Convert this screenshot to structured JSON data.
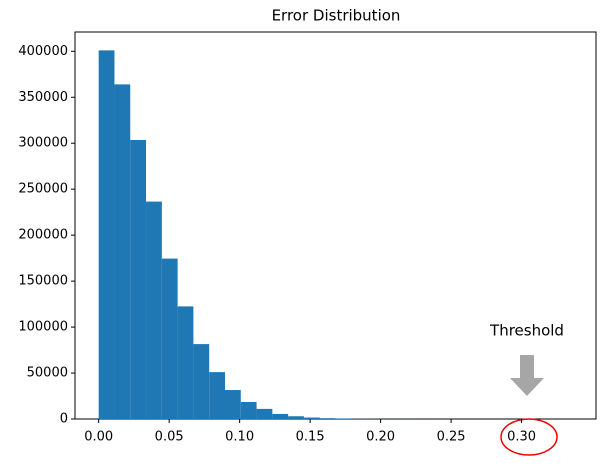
{
  "chart_data": {
    "type": "histogram",
    "title": "Error Distribution",
    "bins": [
      0,
      0.0112,
      0.0224,
      0.0336,
      0.0448,
      0.056,
      0.0672,
      0.0784,
      0.0896,
      0.1008,
      0.112,
      0.1232,
      0.1344,
      0.1456,
      0.1568,
      0.168,
      0.1792,
      0.1904,
      0.2016,
      0.2128,
      0.224,
      0.2352,
      0.2464,
      0.2576,
      0.2688,
      0.28,
      0.2912,
      0.3024,
      0.3136,
      0.3248,
      0.336
    ],
    "values": [
      401000,
      364000,
      303500,
      236500,
      174500,
      122500,
      81500,
      51000,
      31500,
      18500,
      11000,
      5500,
      3000,
      1600,
      900,
      500,
      300,
      200,
      100,
      80,
      60,
      40,
      30,
      20,
      15,
      10,
      8,
      5,
      3,
      2
    ],
    "color": "#1f77b4",
    "xlim": [
      -0.0168,
      0.3528
    ],
    "xticks": [
      {
        "value": 0,
        "label": "0.00"
      },
      0.05,
      {
        "value": 0.1,
        "label": "0.10"
      },
      0.15,
      {
        "value": 0.2,
        "label": "0.20"
      },
      0.25,
      {
        "value": 0.3,
        "label": "0.30"
      }
    ],
    "ylim": [
      0,
      421000
    ],
    "yticks": [
      0,
      50000,
      100000,
      150000,
      200000,
      250000,
      300000,
      350000,
      400000
    ],
    "annotation": "Threshold"
  }
}
